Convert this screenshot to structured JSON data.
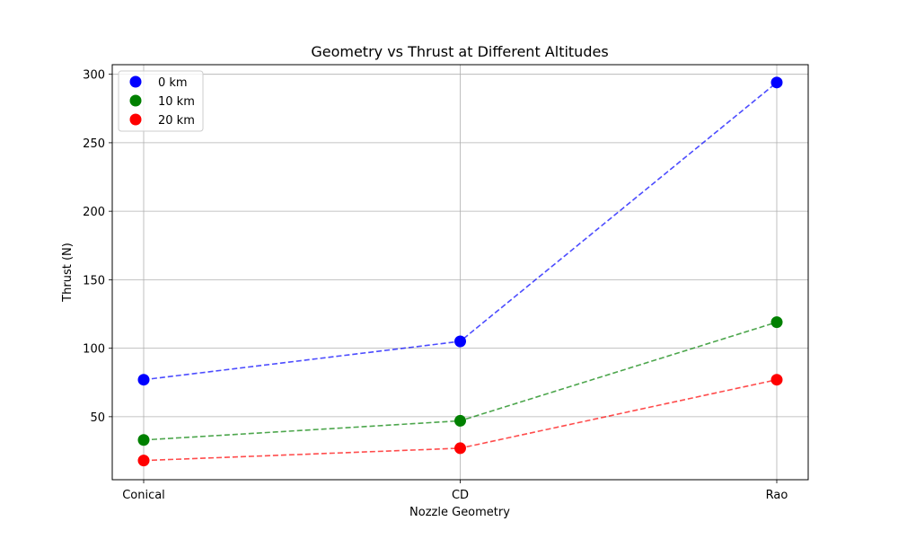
{
  "chart_data": {
    "type": "scatter",
    "title": "Geometry vs Thrust at Different Altitudes",
    "xlabel": "Nozzle Geometry",
    "ylabel": "Thrust (N)",
    "categories": [
      "Conical",
      "CD",
      "Rao"
    ],
    "ylim": [
      4,
      307
    ],
    "yticks": [
      50,
      100,
      150,
      200,
      250,
      300
    ],
    "grid": true,
    "legend_position": "top-left",
    "series": [
      {
        "name": "0 km",
        "color": "#0000ff",
        "line_style": "dashed",
        "values": [
          77,
          105,
          294
        ]
      },
      {
        "name": "10 km",
        "color": "#008000",
        "line_style": "dashed",
        "values": [
          33,
          47,
          119
        ]
      },
      {
        "name": "20 km",
        "color": "#ff0000",
        "line_style": "dashed",
        "values": [
          18,
          27,
          77
        ]
      }
    ]
  }
}
